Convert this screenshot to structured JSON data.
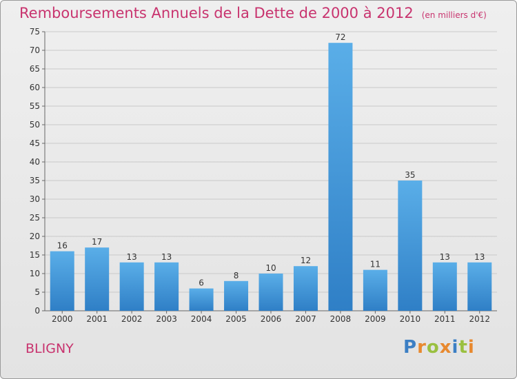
{
  "title": "Remboursements Annuels de la Dette de 2000 à 2012",
  "unit": "(en milliers d'€)",
  "commune": "BLIGNY",
  "logo": {
    "letters": [
      "P",
      "r",
      "o",
      "x",
      "i",
      "t",
      "i"
    ],
    "colors": [
      "#3c7fc4",
      "#e8892f",
      "#9ac040",
      "#e8892f",
      "#3c7fc4",
      "#9ac040",
      "#e8892f"
    ]
  },
  "chart_data": {
    "type": "bar",
    "categories": [
      "2000",
      "2001",
      "2002",
      "2003",
      "2004",
      "2005",
      "2006",
      "2007",
      "2008",
      "2009",
      "2010",
      "2011",
      "2012"
    ],
    "values": [
      16,
      17,
      13,
      13,
      6,
      8,
      10,
      12,
      72,
      11,
      35,
      13,
      13
    ],
    "ylim": [
      0,
      75
    ],
    "yticks": [
      0,
      5,
      10,
      15,
      20,
      25,
      30,
      35,
      40,
      45,
      50,
      55,
      60,
      65,
      70,
      75
    ],
    "grid": true,
    "bar_color": "#3a8fd6"
  }
}
